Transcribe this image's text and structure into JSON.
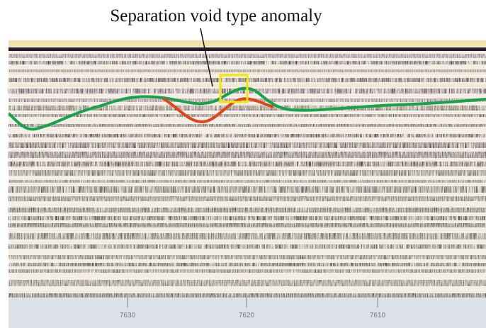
{
  "annotation": "Separation void type anomaly",
  "axis_labels": [
    "7630",
    "7620",
    "7610"
  ]
}
